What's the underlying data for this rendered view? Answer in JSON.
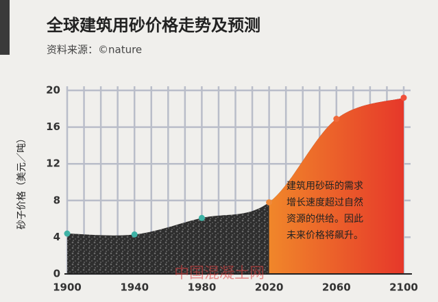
{
  "chart_data": {
    "type": "area",
    "title": "全球建筑用砂价格走势及预测",
    "subtitle": "资料来源：©nature",
    "y_label": "砂子价格（美元／吨）",
    "x": [
      1900,
      1940,
      1980,
      2020,
      2060,
      2100
    ],
    "series": [
      {
        "values": [
          4.4,
          4.3,
          6.1,
          7.8,
          16.9,
          19.2
        ],
        "marker_colors": [
          "#3fb3a6",
          "#3fb3a6",
          "#3fb3a6",
          "#f08a3a",
          "#f06a3a",
          "#f0503a"
        ]
      }
    ],
    "xlim": [
      1900,
      2100
    ],
    "xticks": [
      1900,
      1940,
      1980,
      2020,
      2060,
      2100
    ],
    "ylim": [
      0,
      20
    ],
    "yticks": [
      0,
      4,
      8,
      12,
      16,
      20
    ],
    "grid": true,
    "annotation": [
      "建筑用砂砾的需求",
      "增长速度超过自然",
      "资源的供给。因此",
      "未来价格将飙升。"
    ],
    "watermark": "中国混凝土网"
  }
}
